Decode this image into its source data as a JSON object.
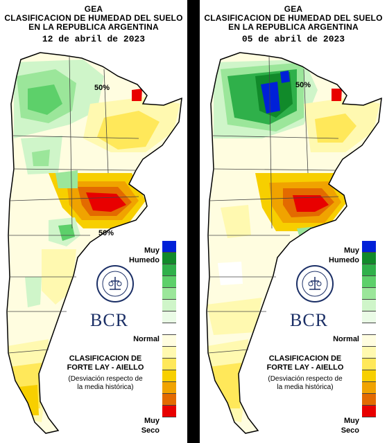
{
  "panels": [
    {
      "title_line1": "GEA",
      "title_line2": "CLASIFICACION DE HUMEDAD DEL SUELO",
      "title_line3": "EN LA REPUBLICA ARGENTINA",
      "date": "12 de abril de 2023",
      "contour_labels": [
        "50%",
        "50%"
      ]
    },
    {
      "title_line1": "GEA",
      "title_line2": "CLASIFICACION DE HUMEDAD DEL SUELO",
      "title_line3": "EN LA REPUBLICA ARGENTINA",
      "date": "05 de abril de 2023",
      "contour_labels": [
        "50%"
      ]
    }
  ],
  "legend": {
    "top_label_1": "Muy",
    "top_label_2": "Humedo",
    "middle_label": "Normal",
    "bottom_label_1": "Muy",
    "bottom_label_2": "Seco",
    "colors": [
      "#0020d8",
      "#118a2a",
      "#2fb04a",
      "#5dd06a",
      "#9be69a",
      "#cff5c9",
      "#eafbe6",
      "#ffffff",
      "#fffde0",
      "#fff9b0",
      "#ffe85a",
      "#f7cf00",
      "#f0a300",
      "#e36a00",
      "#e80000"
    ]
  },
  "footer": {
    "classification_line1": "CLASIFICACION DE",
    "classification_line2": "FORTE LAY - AIELLO",
    "deviation_line1": "(Desviación respecto de",
    "deviation_line2": "la media histórica)"
  },
  "brand": {
    "logo_text": "BCR"
  }
}
